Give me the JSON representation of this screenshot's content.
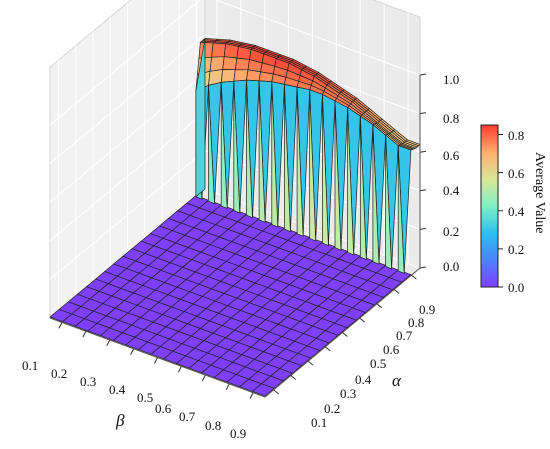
{
  "chart_data": {
    "type": "surface3d",
    "title": "",
    "x_axis": {
      "label": "β",
      "ticks": [
        "0.1",
        "0.2",
        "0.3",
        "0.4",
        "0.5",
        "0.6",
        "0.7",
        "0.8",
        "0.9"
      ],
      "range": [
        0.05,
        0.95
      ]
    },
    "y_axis": {
      "label": "α",
      "ticks": [
        "0.1",
        "0.2",
        "0.3",
        "0.4",
        "0.5",
        "0.6",
        "0.7",
        "0.8",
        "0.9"
      ],
      "range": [
        0.05,
        0.95
      ]
    },
    "z_axis": {
      "label": "",
      "ticks": [
        "0.0",
        "0.2",
        "0.4",
        "0.6",
        "0.8",
        "1.0"
      ],
      "range": [
        0,
        1.0
      ]
    },
    "colorbar": {
      "label": "Average Value",
      "ticks": [
        "0.0",
        "0.2",
        "0.4",
        "0.6",
        "0.8"
      ],
      "range": [
        0,
        0.85
      ],
      "colormap": "rainbow"
    },
    "grid": true,
    "surface": {
      "beta_range": [
        0.05,
        0.95
      ],
      "alpha_range": [
        0.05,
        0.95
      ],
      "grid_steps": 17,
      "region_zero": "alpha below about 0.9: value 0.0 (flat floor)",
      "edge_alpha": 0.95,
      "edge_values_by_beta": [
        0.55,
        0.6,
        0.64,
        0.67,
        0.7,
        0.72,
        0.74,
        0.75,
        0.76,
        0.77,
        0.77,
        0.76,
        0.75,
        0.73,
        0.71,
        0.68,
        0.65
      ],
      "ridge_values_by_beta": [
        0.78,
        0.8,
        0.82,
        0.83,
        0.84,
        0.84,
        0.84,
        0.84,
        0.83,
        0.82,
        0.8,
        0.78,
        0.76,
        0.73,
        0.7,
        0.67,
        0.64
      ],
      "colors": {
        "low": "#7f3fff",
        "mid": "#3fd8e8",
        "high": "#ff4f3a"
      }
    }
  }
}
